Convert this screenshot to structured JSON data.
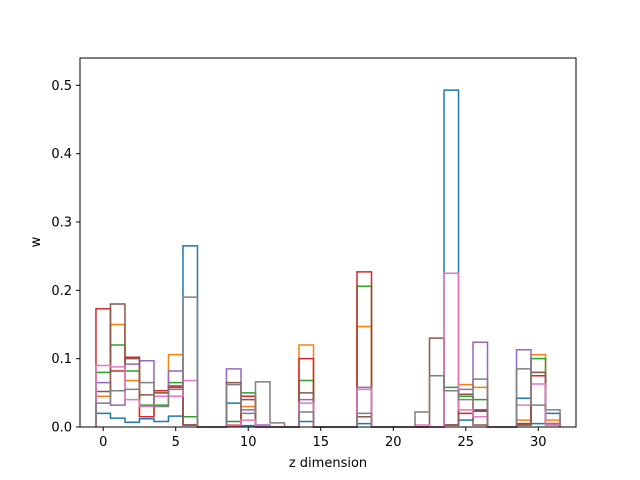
{
  "chart_data": {
    "type": "step",
    "xlabel": "z dimension",
    "ylabel": "w",
    "xlim": [
      -1.6,
      32.6
    ],
    "ylim": [
      0,
      0.54
    ],
    "xticks": [
      0,
      5,
      10,
      15,
      20,
      25,
      30
    ],
    "yticks": [
      0.0,
      0.1,
      0.2,
      0.3,
      0.4,
      0.5
    ],
    "ytick_labels": [
      "0.0",
      "0.1",
      "0.2",
      "0.3",
      "0.4",
      "0.5"
    ],
    "grid": false,
    "x": [
      0,
      1,
      2,
      3,
      4,
      5,
      6,
      7,
      8,
      9,
      10,
      11,
      12,
      13,
      14,
      15,
      16,
      17,
      18,
      19,
      20,
      21,
      22,
      23,
      24,
      25,
      26,
      27,
      28,
      29,
      30,
      31
    ],
    "series": [
      {
        "color": "#1f77b4",
        "values": [
          0.02,
          0.013,
          0.007,
          0.012,
          0.008,
          0.016,
          0.265,
          0,
          0,
          0.035,
          0.002,
          0,
          0,
          0,
          0.008,
          0,
          0,
          0,
          0.005,
          0,
          0,
          0,
          0,
          0,
          0.493,
          0.01,
          0.023,
          0,
          0,
          0.042,
          0.005,
          0.02
        ]
      },
      {
        "color": "#ff7f0e",
        "values": [
          0.045,
          0.15,
          0.068,
          0.015,
          0.05,
          0.106,
          0.003,
          0,
          0,
          0.003,
          0.03,
          0,
          0,
          0,
          0.12,
          0,
          0,
          0,
          0.147,
          0,
          0,
          0,
          0,
          0,
          0.003,
          0.062,
          0.058,
          0,
          0,
          0.01,
          0.106,
          0.01
        ]
      },
      {
        "color": "#2ca02c",
        "values": [
          0.08,
          0.12,
          0.082,
          0.032,
          0.032,
          0.065,
          0.015,
          0,
          0,
          0.008,
          0.05,
          0,
          0,
          0,
          0.068,
          0,
          0,
          0,
          0.206,
          0,
          0,
          0,
          0,
          0,
          0.058,
          0.045,
          0.04,
          0,
          0,
          0.003,
          0.1,
          0.005
        ]
      },
      {
        "color": "#d62728",
        "values": [
          0.173,
          0.082,
          0.102,
          0.015,
          0.053,
          0.06,
          0.003,
          0,
          0,
          0.002,
          0.045,
          0,
          0,
          0,
          0.1,
          0,
          0,
          0,
          0.227,
          0,
          0,
          0,
          0,
          0,
          0.003,
          0.02,
          0.025,
          0,
          0,
          0.005,
          0.075,
          0.005
        ]
      },
      {
        "color": "#9467bd",
        "values": [
          0.065,
          0.032,
          0.092,
          0.097,
          0.045,
          0.082,
          0.003,
          0,
          0,
          0.085,
          0.025,
          0.003,
          0,
          0,
          0.04,
          0,
          0,
          0,
          0.058,
          0,
          0,
          0,
          0,
          0,
          0.003,
          0.055,
          0.124,
          0,
          0,
          0.113,
          0.08,
          0.005
        ]
      },
      {
        "color": "#8c564b",
        "values": [
          0.052,
          0.18,
          0.1,
          0.047,
          0.05,
          0.058,
          0.003,
          0,
          0,
          0.065,
          0.04,
          0,
          0,
          0,
          0.05,
          0,
          0,
          0,
          0.015,
          0,
          0,
          0,
          0,
          0.13,
          0.003,
          0.048,
          0.003,
          0,
          0,
          0.003,
          0.08,
          0.003
        ]
      },
      {
        "color": "#e377c2",
        "values": [
          0.09,
          0.088,
          0.04,
          0.03,
          0.045,
          0.045,
          0.068,
          0,
          0,
          0.003,
          0.01,
          0,
          0,
          0,
          0.035,
          0,
          0,
          0,
          0.055,
          0,
          0,
          0,
          0.003,
          0,
          0.225,
          0.025,
          0.015,
          0,
          0,
          0.032,
          0.063,
          0.003
        ]
      },
      {
        "color": "#7f7f7f",
        "values": [
          0.035,
          0.053,
          0.055,
          0.065,
          0.03,
          0.055,
          0.19,
          0,
          0,
          0.062,
          0.02,
          0.066,
          0.006,
          0,
          0.022,
          0,
          0,
          0,
          0.02,
          0,
          0,
          0,
          0.022,
          0.075,
          0.053,
          0.04,
          0.07,
          0,
          0,
          0.085,
          0.032,
          0.025
        ]
      }
    ]
  }
}
